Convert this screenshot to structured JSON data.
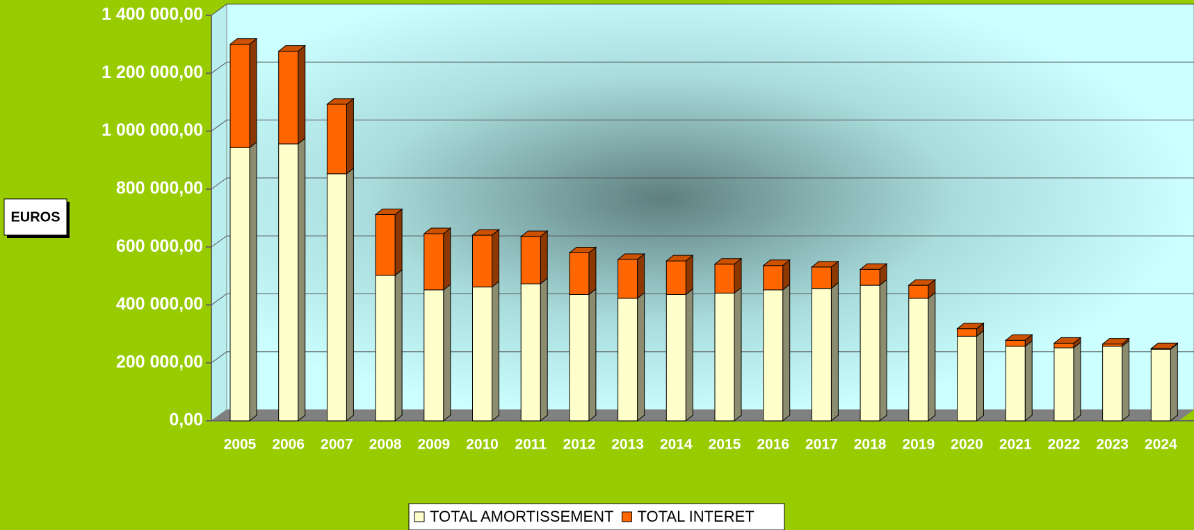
{
  "chart_data": {
    "type": "bar",
    "stacked": true,
    "ylabel": "EUROS",
    "categories": [
      "2005",
      "2006",
      "2007",
      "2008",
      "2009",
      "2010",
      "2011",
      "2012",
      "2013",
      "2014",
      "2015",
      "2016",
      "2017",
      "2018",
      "2019",
      "2020",
      "2021",
      "2022",
      "2023",
      "2024"
    ],
    "series": [
      {
        "name": "TOTAL AMORTISSEMENT",
        "color": "#ffffcc",
        "values": [
          943000,
          956000,
          853000,
          502000,
          452000,
          462000,
          473000,
          436000,
          423000,
          436000,
          441000,
          452000,
          457000,
          468000,
          423000,
          292000,
          257000,
          252000,
          257000,
          247000
        ]
      },
      {
        "name": "TOTAL INTERET",
        "color": "#ff6600",
        "values": [
          357000,
          320000,
          240000,
          210000,
          194000,
          179000,
          163000,
          144000,
          134000,
          116000,
          100000,
          84000,
          74000,
          55000,
          45000,
          26000,
          21000,
          16000,
          8000,
          2000
        ]
      }
    ],
    "ylim": [
      0,
      1400000
    ],
    "yticks": [
      {
        "value": 0,
        "label": "0,00"
      },
      {
        "value": 200000,
        "label": "200 000,00"
      },
      {
        "value": 400000,
        "label": "400 000,00"
      },
      {
        "value": 600000,
        "label": "600 000,00"
      },
      {
        "value": 800000,
        "label": "800 000,00"
      },
      {
        "value": 1000000,
        "label": "1 000 000,00"
      },
      {
        "value": 1200000,
        "label": "1 200 000,00"
      },
      {
        "value": 1400000,
        "label": "1 400 000,00"
      }
    ],
    "grid": true,
    "legend": "bottom"
  }
}
